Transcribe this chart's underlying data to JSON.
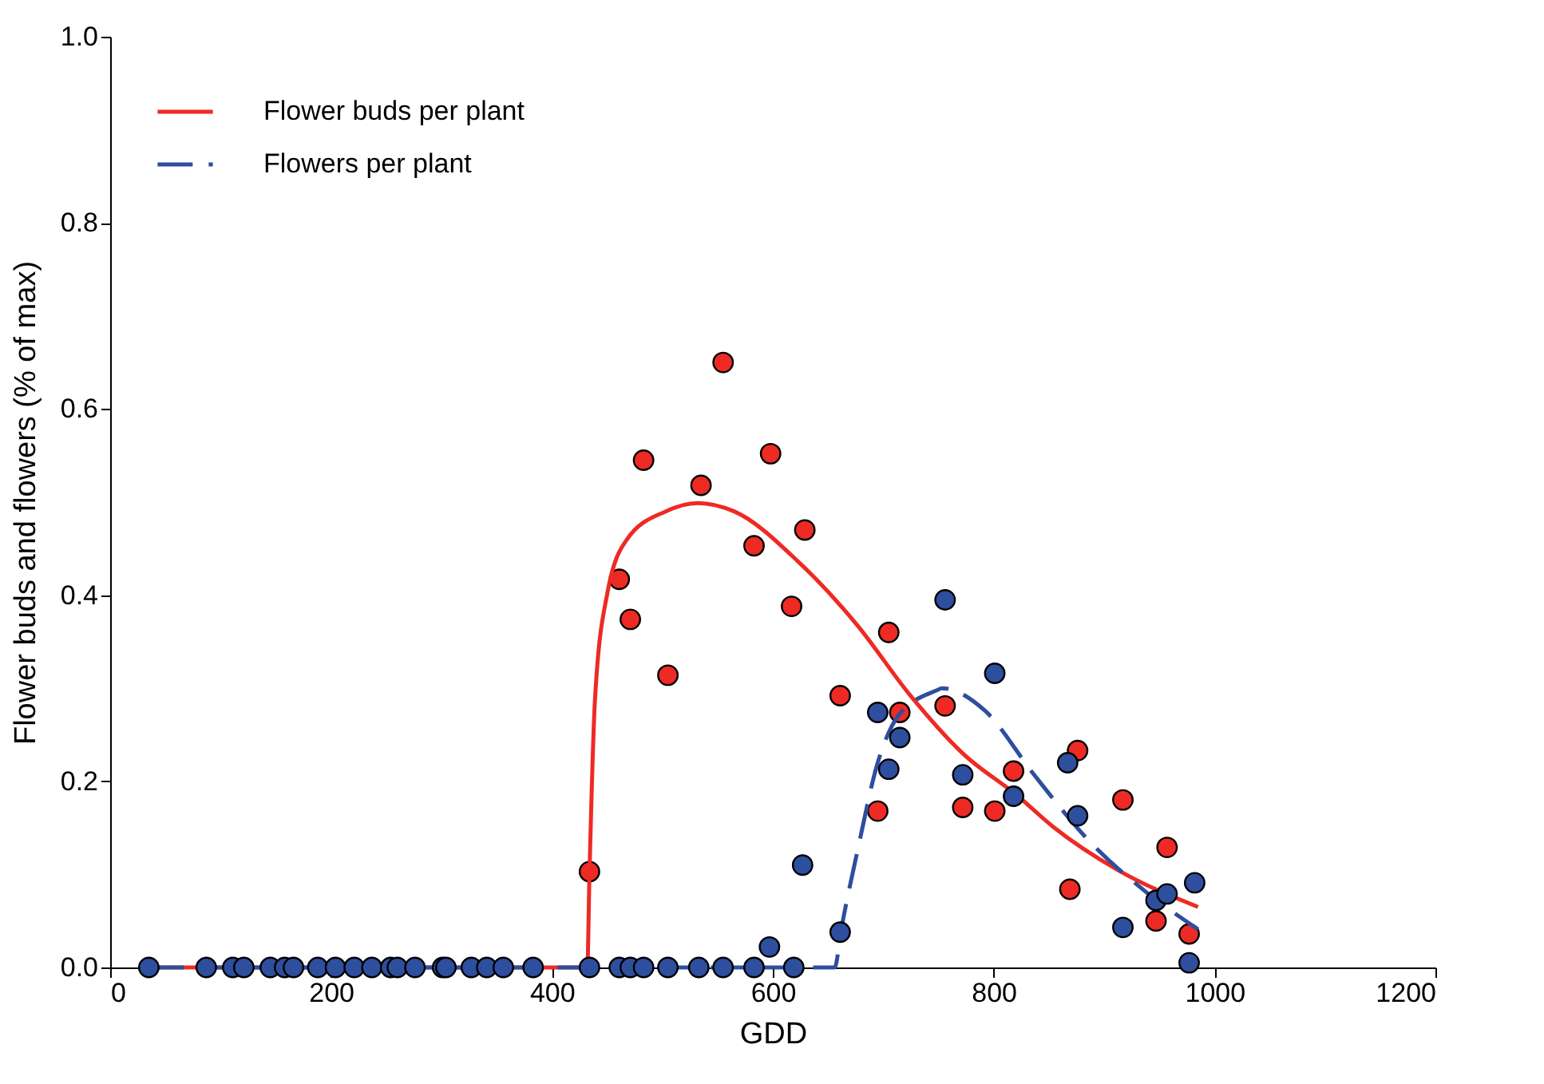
{
  "chart_data": {
    "type": "scatter",
    "xlabel": "GDD",
    "ylabel": "Flower buds and flowers (% of max)",
    "xlim": [
      0,
      1200
    ],
    "xticks": [
      0,
      200,
      400,
      600,
      800,
      1000,
      1200
    ],
    "ylim": [
      0,
      1
    ],
    "yticks": [
      {
        "value": 0,
        "label": "0.0"
      },
      {
        "value": 0.2,
        "label": "0.2"
      },
      {
        "value": 0.4,
        "label": "0.4"
      },
      {
        "value": 0.6,
        "label": "0.6"
      },
      {
        "value": 0.8,
        "label": "0.8"
      },
      {
        "value": 1,
        "label": "1.0"
      }
    ],
    "grid": false,
    "legend": "top left",
    "series": [
      {
        "name": "Flower buds per plant",
        "type": "line",
        "line_style": "solid",
        "marker": "none",
        "color": "#ee2a24",
        "x": [
          35,
          432,
          434,
          439,
          450,
          468,
          503,
          532,
          565,
          623,
          677,
          724,
          772,
          821,
          854,
          912,
          985
        ],
        "values": [
          0,
          0,
          0.1,
          0.288,
          0.401,
          0.46,
          0.49,
          0.499,
          0.49,
          0.436,
          0.367,
          0.293,
          0.23,
          0.185,
          0.151,
          0.105,
          0.065
        ]
      },
      {
        "name": "Flowers per plant",
        "type": "line",
        "line_style": "dashed",
        "marker": "none",
        "color": "#2e4e9e",
        "x": [
          35,
          656,
          662,
          677,
          695,
          714,
          749,
          753,
          792,
          836,
          884,
          937,
          985
        ],
        "values": [
          0,
          0,
          0.041,
          0.127,
          0.22,
          0.271,
          0.298,
          0.3,
          0.276,
          0.208,
          0.139,
          0.082,
          0.041
        ]
      },
      {
        "marker": "circle",
        "color": "#ee2a24",
        "x": [
          434,
          461,
          471,
          483,
          505,
          535,
          555,
          583,
          598,
          617,
          629,
          661,
          695,
          705,
          715,
          756,
          772,
          801,
          818,
          869,
          876,
          917,
          947,
          957,
          977
        ],
        "values": [
          0.103,
          0.417,
          0.374,
          0.545,
          0.314,
          0.518,
          0.65,
          0.453,
          0.552,
          0.388,
          0.47,
          0.292,
          0.168,
          0.36,
          0.274,
          0.281,
          0.172,
          0.168,
          0.211,
          0.084,
          0.233,
          0.18,
          0.05,
          0.129,
          0.036
        ]
      },
      {
        "marker": "circle",
        "color": "#2e4e9e",
        "x": [
          35,
          87,
          111,
          121,
          145,
          158,
          166,
          188,
          204,
          221,
          237,
          254,
          260,
          276,
          301,
          304,
          327,
          341,
          356,
          383,
          434,
          461,
          471,
          483,
          505,
          533,
          555,
          583,
          597,
          619,
          627,
          661,
          695,
          705,
          715,
          756,
          772,
          801,
          818,
          867,
          876,
          917,
          947,
          957,
          977,
          982
        ],
        "values": [
          0,
          0,
          0,
          0,
          0,
          0,
          0,
          0,
          0,
          0,
          0,
          0,
          0,
          0,
          0,
          0,
          0,
          0,
          0,
          0,
          0,
          0,
          0,
          0,
          0,
          0,
          0,
          0,
          0.022,
          0,
          0.11,
          0.038,
          0.274,
          0.213,
          0.247,
          0.395,
          0.207,
          0.316,
          0.184,
          0.22,
          0.163,
          0.043,
          0.072,
          0.079,
          0.005,
          0.091
        ]
      }
    ]
  }
}
